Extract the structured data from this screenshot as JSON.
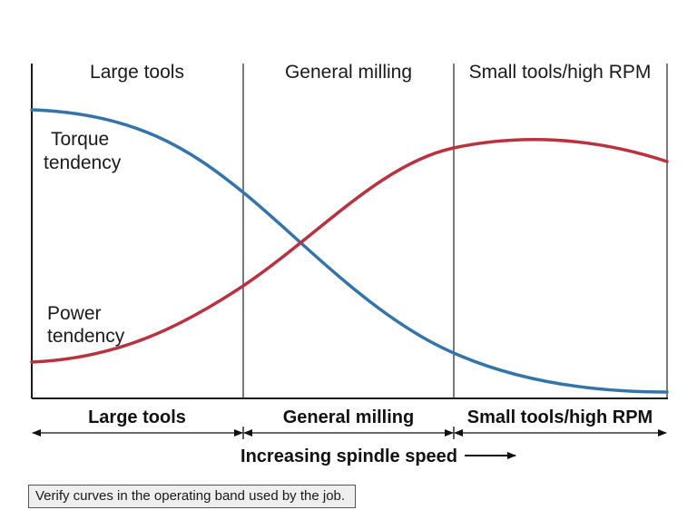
{
  "zones": {
    "top_labels": [
      "Large tools",
      "General milling",
      "Small tools/high RPM"
    ],
    "bottom_labels": [
      "Large tools",
      "General milling",
      "Small tools/high RPM"
    ]
  },
  "curves": {
    "torque": {
      "label_line1": "Torque",
      "label_line2": "tendency",
      "color": "#3574a8"
    },
    "power": {
      "label_line1": "Power",
      "label_line2": "tendency",
      "color": "#b8323f"
    }
  },
  "axis": {
    "speed_label": "Increasing spindle speed"
  },
  "note": {
    "text": "Verify curves in the operating band used by the job."
  }
}
